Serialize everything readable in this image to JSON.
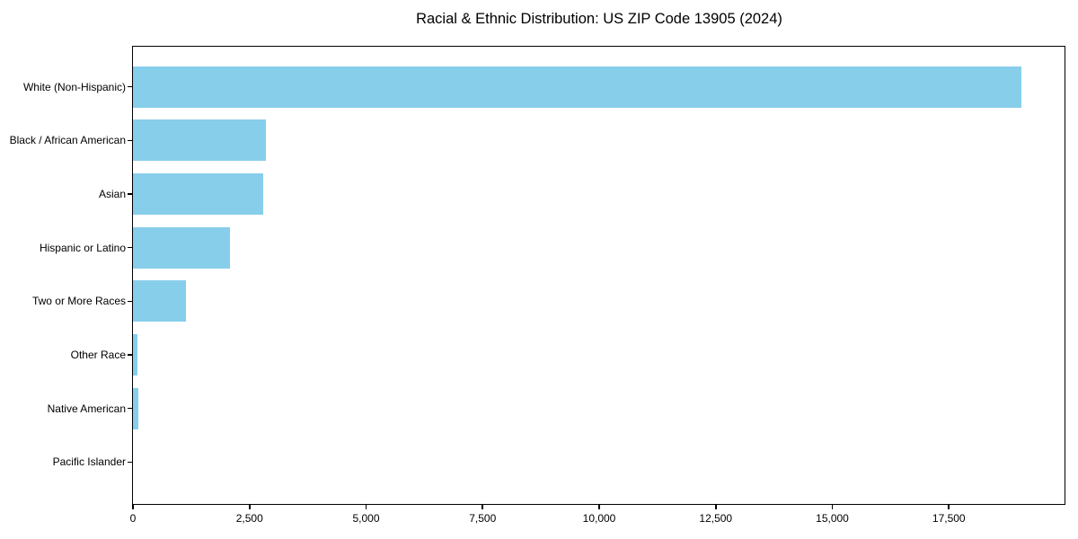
{
  "chart_data": {
    "type": "bar",
    "orientation": "horizontal",
    "title": "Racial & Ethnic Distribution: US ZIP Code 13905 (2024)",
    "categories": [
      "White (Non-Hispanic)",
      "Black / African American",
      "Asian",
      "Hispanic or Latino",
      "Two or More Races",
      "Other Race",
      "Native American",
      "Pacific Islander"
    ],
    "values": [
      19050,
      2860,
      2790,
      2090,
      1130,
      100,
      115,
      0
    ],
    "bar_color": "#87CEEB",
    "xlabel": "",
    "ylabel": "",
    "xlim": [
      0,
      20000
    ],
    "xticks": [
      0,
      2500,
      5000,
      7500,
      10000,
      12500,
      15000,
      17500
    ],
    "xtick_labels": [
      "0",
      "2,500",
      "5,000",
      "7,500",
      "10,000",
      "12,500",
      "15,000",
      "17,500"
    ],
    "grid": false,
    "legend": null,
    "background_color": "#ffffff",
    "text_color": "#000000"
  }
}
